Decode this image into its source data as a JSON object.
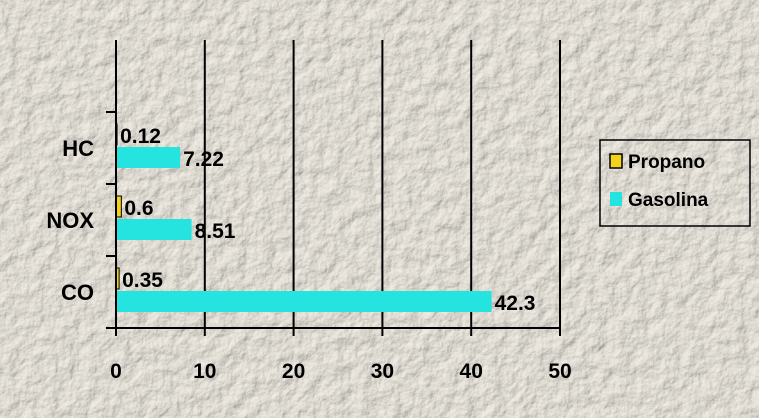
{
  "chart_data": {
    "type": "bar",
    "orientation": "horizontal",
    "categories": [
      "CO",
      "NOX",
      "HC"
    ],
    "series": [
      {
        "name": "Propano",
        "values": [
          0.35,
          0.6,
          0.12
        ],
        "color": "#f2d21a"
      },
      {
        "name": "Gasolina",
        "values": [
          42.3,
          8.51,
          7.22
        ],
        "color": "#25e3de"
      }
    ],
    "data_labels": {
      "Propano": [
        "0.35",
        "0.6",
        "0.12"
      ],
      "Gasolina": [
        "42.3",
        "8.51",
        "7.22"
      ]
    },
    "xlim": [
      0,
      50
    ],
    "xticks": [
      0,
      10,
      20,
      30,
      40,
      50
    ],
    "grid": true,
    "legend": "right",
    "title": "",
    "xlabel": "",
    "ylabel": ""
  }
}
